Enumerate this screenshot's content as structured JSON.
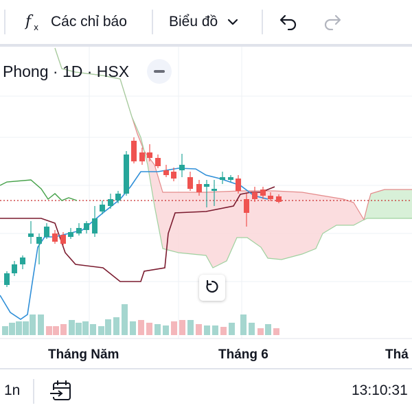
{
  "toolbar": {
    "indicators_label": "Các chỉ báo",
    "chart_type_label": "Biểu đồ",
    "icons": [
      "fx-icon",
      "chevron-down-icon",
      "undo-icon",
      "redo-icon"
    ]
  },
  "legend": {
    "symbol": "Phong · 1D · HSX"
  },
  "time_axis": {
    "labels": [
      "Tháng Năm",
      "Tháng 6",
      "Thá"
    ]
  },
  "bottom_bar": {
    "interval": "1n",
    "clock": "13:10:31"
  },
  "colors": {
    "up": "#26a69a",
    "down": "#ef5350",
    "cloud_bear": "#fbd9dc",
    "cloud_bull": "#d8f0d8",
    "tenkan": "#2f8fd8",
    "kijun": "#7a1a2e",
    "chikou": "#43a047",
    "price_line": "#c62828"
  }
}
